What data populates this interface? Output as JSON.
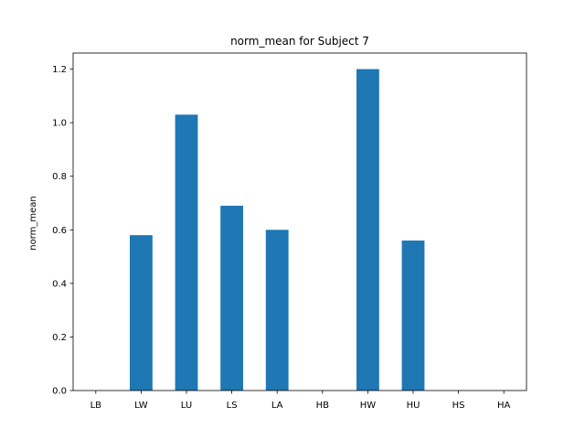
{
  "chart_data": {
    "type": "bar",
    "title": "norm_mean for Subject 7",
    "xlabel": "",
    "ylabel": "norm_mean",
    "categories": [
      "LB",
      "LW",
      "LU",
      "LS",
      "LA",
      "HB",
      "HW",
      "HU",
      "HS",
      "HA"
    ],
    "values": [
      0,
      0.58,
      1.03,
      0.69,
      0.6,
      0,
      1.2,
      0.56,
      0,
      0
    ],
    "ylim": [
      0,
      1.26
    ],
    "yticks": [
      0.0,
      0.2,
      0.4,
      0.6,
      0.8,
      1.0,
      1.2
    ],
    "ytick_labels": [
      "0.0",
      "0.2",
      "0.4",
      "0.6",
      "0.8",
      "1.0",
      "1.2"
    ],
    "bar_color": "#1f77b4",
    "grid": false,
    "legend": "none"
  }
}
